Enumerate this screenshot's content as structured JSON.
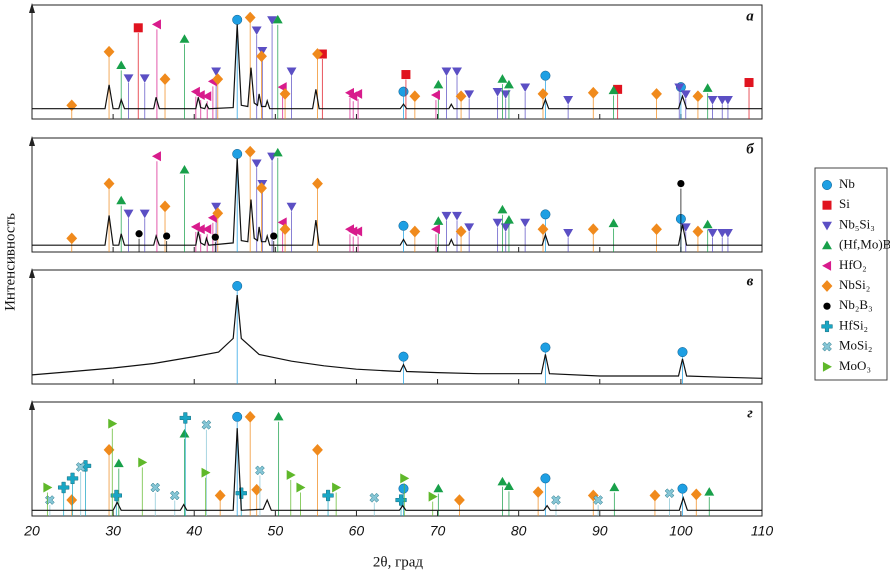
{
  "chart_data": {
    "type": "xrd",
    "xlabel": "2θ, град",
    "ylabel": "Интенсивность",
    "xlim": [
      20,
      110
    ],
    "xticks": [
      20,
      30,
      40,
      50,
      60,
      70,
      80,
      90,
      100,
      110
    ],
    "phases": [
      {
        "name": "Nb",
        "color": "#1e9fe3",
        "marker": "circle"
      },
      {
        "name": "Si",
        "color": "#e0131f",
        "marker": "square"
      },
      {
        "name": "Nb₅Si₃",
        "color": "#5b4fc4",
        "marker": "tri-down"
      },
      {
        "name": "(Hf,Mo)B₂",
        "color": "#18a04a",
        "marker": "tri-up"
      },
      {
        "name": "HfO₂",
        "color": "#d81b8c",
        "marker": "tri-left"
      },
      {
        "name": "NbSi₂",
        "color": "#f08a1c",
        "marker": "diamond"
      },
      {
        "name": "Nb₂B₃",
        "color": "#000000",
        "marker": "dot"
      },
      {
        "name": "HfSi₂",
        "color": "#1aa6c4",
        "marker": "plus"
      },
      {
        "name": "MoSi₂",
        "color": "#86c6d6",
        "marker": "cross"
      },
      {
        "name": "MoO₃",
        "color": "#5fb82a",
        "marker": "tri-right"
      }
    ],
    "panels": [
      {
        "label": "а",
        "ylim": [
          0,
          100
        ],
        "pattern": {
          "x": [
            20,
            29,
            29.5,
            30,
            30.7,
            31,
            31.4,
            35,
            35.3,
            35.7,
            40.2,
            40.5,
            40.8,
            41.3,
            41.5,
            41.8,
            44.8,
            45.3,
            45.8,
            46.6,
            47,
            47.4,
            47.8,
            48,
            48.3,
            48.8,
            49,
            49.3,
            54.6,
            55,
            55.4,
            65.4,
            65.8,
            66.2,
            71.4,
            71.7,
            72,
            82.9,
            83.3,
            83.7,
            99.7,
            100.2,
            100.7,
            110
          ],
          "values": [
            9,
            9,
            30,
            9,
            9,
            17,
            9,
            9,
            19,
            9,
            9,
            19,
            10,
            9,
            13,
            9,
            10,
            83,
            12,
            11,
            45,
            14,
            12,
            22,
            11,
            11,
            16,
            9,
            9,
            26,
            9,
            9,
            13,
            9,
            9,
            13,
            9,
            9,
            17,
            9,
            9,
            20,
            9,
            9
          ]
        },
        "series": [
          {
            "name": "Nb",
            "x": [
              45.3,
              65.8,
              83.3,
              100.0
            ],
            "values": [
              87,
              24,
              38,
              28
            ]
          },
          {
            "name": "Si",
            "x": [
              33.1,
              55.8,
              66.1,
              92.2,
              108.4
            ],
            "values": [
              80,
              57,
              39,
              26,
              32
            ]
          },
          {
            "name": "Nb₅Si₃",
            "x": [
              31.9,
              33.9,
              42.7,
              47.7,
              48.4,
              49.6,
              52.0,
              71.1,
              72.4,
              73.9,
              77.4,
              78.4,
              80.8,
              86.1,
              99.8,
              100.6,
              103.9,
              105.1,
              105.8
            ],
            "values": [
              36,
              36,
              42,
              78,
              60,
              87,
              42,
              42,
              42,
              22,
              24,
              22,
              28,
              17,
              28,
              22,
              17,
              17,
              17
            ]
          },
          {
            "name": "(Hf,Mo)B₂",
            "x": [
              31.0,
              38.8,
              50.3,
              70.1,
              78.0,
              78.8,
              91.7,
              103.3
            ],
            "values": [
              47,
              70,
              87,
              30,
              35,
              30,
              25,
              27
            ]
          },
          {
            "name": "HfO₂",
            "x": [
              35.4,
              40.2,
              40.8,
              41.6,
              42.3,
              50.9,
              59.2,
              59.6,
              60.2,
              69.8
            ],
            "values": [
              83,
              24,
              21,
              20,
              33,
              28,
              23,
              20,
              22,
              21
            ]
          },
          {
            "name": "NbSi₂",
            "x": [
              24.9,
              29.5,
              36.4,
              42.9,
              46.9,
              48.3,
              51.2,
              55.2,
              67.2,
              72.9,
              83.0,
              89.2,
              97.0,
              102.1
            ],
            "values": [
              12,
              59,
              35,
              35,
              89,
              55,
              22,
              57,
              20,
              20,
              22,
              23,
              22,
              20
            ]
          }
        ]
      },
      {
        "label": "б",
        "ylim": [
          0,
          100
        ],
        "pattern": {
          "x": [
            20,
            29,
            29.5,
            30,
            30.7,
            31,
            31.4,
            35,
            35.3,
            35.7,
            40.2,
            40.5,
            40.8,
            41.3,
            41.5,
            41.8,
            44.8,
            45.3,
            45.8,
            46.6,
            47,
            47.4,
            47.8,
            48,
            48.3,
            48.8,
            49,
            49.3,
            54.6,
            55,
            55.4,
            65.4,
            65.8,
            66.2,
            71.4,
            71.7,
            72,
            82.9,
            83.3,
            83.7,
            99.7,
            100.2,
            100.7,
            110
          ],
          "values": [
            6,
            6,
            32,
            6,
            6,
            16,
            6,
            6,
            14,
            6,
            6,
            18,
            8,
            6,
            12,
            6,
            8,
            82,
            10,
            9,
            46,
            12,
            10,
            22,
            9,
            9,
            14,
            6,
            6,
            28,
            6,
            6,
            11,
            6,
            6,
            11,
            6,
            6,
            15,
            6,
            6,
            24,
            6,
            6
          ]
        },
        "series": [
          {
            "name": "Nb",
            "x": [
              45.3,
              65.8,
              83.3,
              100.0
            ],
            "values": [
              86,
              23,
              33,
              29
            ]
          },
          {
            "name": "Nb₅Si₃",
            "x": [
              31.9,
              33.9,
              42.7,
              47.7,
              48.4,
              49.6,
              52.0,
              71.1,
              72.4,
              73.9,
              77.4,
              78.4,
              80.8,
              86.1,
              100.6,
              103.9,
              105.1,
              105.8
            ],
            "values": [
              34,
              34,
              40,
              78,
              60,
              84,
              40,
              32,
              32,
              22,
              26,
              22,
              26,
              17,
              22,
              17,
              17,
              17
            ]
          },
          {
            "name": "(Hf,Mo)B₂",
            "x": [
              31.0,
              38.8,
              50.3,
              70.1,
              78.0,
              78.8,
              91.7,
              103.3
            ],
            "values": [
              45,
              72,
              87,
              27,
              37,
              28,
              25,
              24
            ]
          },
          {
            "name": "HfO₂",
            "x": [
              35.4,
              40.2,
              40.8,
              41.6,
              42.3,
              50.9,
              59.2,
              59.6,
              60.2,
              69.8
            ],
            "values": [
              84,
              22,
              20,
              20,
              30,
              26,
              20,
              18,
              18,
              20
            ]
          },
          {
            "name": "NbSi₂",
            "x": [
              24.9,
              29.5,
              36.4,
              42.9,
              46.9,
              48.3,
              51.2,
              55.2,
              67.2,
              72.9,
              83.0,
              89.2,
              97.0,
              102.1
            ],
            "values": [
              12,
              60,
              40,
              34,
              88,
              56,
              20,
              60,
              18,
              18,
              20,
              20,
              20,
              18
            ]
          },
          {
            "name": "Nb₂B₃",
            "x": [
              33.2,
              36.6,
              42.6,
              49.8,
              100.0
            ],
            "values": [
              16,
              14,
              13,
              14,
              60
            ]
          }
        ]
      },
      {
        "label": "в",
        "ylim": [
          0,
          100
        ],
        "pattern": {
          "x": [
            20,
            25,
            30,
            35,
            40,
            43,
            44.8,
            45.3,
            45.8,
            48,
            52,
            56,
            60,
            65.4,
            65.8,
            66.2,
            70,
            75,
            82.8,
            83.3,
            83.8,
            90,
            99.7,
            100.2,
            100.7,
            105,
            110
          ],
          "values": [
            8,
            11,
            14,
            18,
            24,
            28,
            40,
            78,
            40,
            26,
            20,
            16,
            13,
            11,
            17,
            11,
            10,
            9,
            9,
            26,
            9,
            7,
            7,
            22,
            7,
            6,
            5
          ]
        },
        "series": [
          {
            "name": "Nb",
            "x": [
              45.3,
              65.8,
              83.3,
              100.2
            ],
            "values": [
              86,
              24,
              32,
              28
            ]
          }
        ]
      },
      {
        "label": "г",
        "ylim": [
          0,
          100
        ],
        "pattern": {
          "x": [
            20,
            30,
            30.5,
            31,
            38.3,
            38.7,
            39.1,
            44.8,
            45.3,
            45.8,
            48.5,
            49,
            49.5,
            65.3,
            65.7,
            66.1,
            83.1,
            83.5,
            83.9,
            99.8,
            100.3,
            100.8,
            110
          ],
          "values": [
            5,
            5,
            12,
            5,
            5,
            10,
            5,
            5,
            77,
            5,
            6,
            14,
            5,
            5,
            9,
            5,
            5,
            9,
            5,
            5,
            16,
            5,
            5
          ]
        },
        "series": [
          {
            "name": "Nb",
            "x": [
              45.3,
              65.8,
              83.3,
              100.2
            ],
            "values": [
              87,
              24,
              33,
              24
            ]
          },
          {
            "name": "(Hf,Mo)B₂",
            "x": [
              30.7,
              38.8,
              50.4,
              70.1,
              78.0,
              78.8,
              91.8,
              103.5
            ],
            "values": [
              46,
              72,
              87,
              24,
              30,
              26,
              25,
              21
            ]
          },
          {
            "name": "NbSi₂",
            "x": [
              24.9,
              29.5,
              43.2,
              46.9,
              47.7,
              55.2,
              72.7,
              82.4,
              89.2,
              96.8,
              101.9
            ],
            "values": [
              14,
              58,
              18,
              87,
              23,
              58,
              14,
              21,
              18,
              18,
              19
            ]
          },
          {
            "name": "HfSi₂",
            "x": [
              23.9,
              25.0,
              26.6,
              30.4,
              38.9,
              45.8,
              56.5,
              65.5
            ],
            "values": [
              25,
              33,
              44,
              18,
              86,
              20,
              18,
              14
            ]
          },
          {
            "name": "MoSi₂",
            "x": [
              22.2,
              26.0,
              35.2,
              37.6,
              41.5,
              48.1,
              62.2,
              84.6,
              89.8,
              98.6
            ],
            "values": [
              14,
              43,
              25,
              18,
              80,
              40,
              16,
              14,
              14,
              20
            ]
          },
          {
            "name": "MoO₃",
            "x": [
              21.9,
              29.9,
              33.6,
              41.4,
              51.9,
              53.1,
              57.5,
              65.9,
              69.4
            ],
            "values": [
              25,
              81,
              47,
              38,
              36,
              25,
              25,
              33,
              17
            ]
          }
        ]
      }
    ]
  }
}
